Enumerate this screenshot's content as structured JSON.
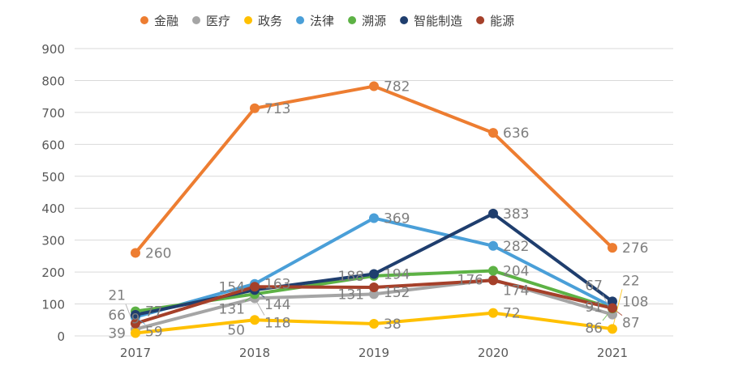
{
  "chart_data": {
    "type": "line",
    "categories": [
      "2017",
      "2018",
      "2019",
      "2020",
      "2021"
    ],
    "ylim": [
      0,
      900
    ],
    "yticks": [
      0,
      100,
      200,
      300,
      400,
      500,
      600,
      700,
      800,
      900
    ],
    "grid": true,
    "legend_position": "top",
    "series": [
      {
        "name": "金融",
        "color": "#ED7D31",
        "values": [
          260,
          713,
          782,
          636,
          276
        ]
      },
      {
        "name": "医疗",
        "color": "#A5A5A5",
        "values": [
          21,
          118,
          131,
          176,
          67
        ]
      },
      {
        "name": "政务",
        "color": "#FFC000",
        "values": [
          9,
          50,
          38,
          72,
          22
        ]
      },
      {
        "name": "法律",
        "color": "#4A9FD8",
        "values": [
          59,
          163,
          369,
          282,
          91
        ]
      },
      {
        "name": "溯源",
        "color": "#5DB245",
        "values": [
          77,
          131,
          188,
          204,
          86
        ]
      },
      {
        "name": "智能制造",
        "color": "#1F3E6E",
        "values": [
          66,
          144,
          194,
          383,
          108
        ]
      },
      {
        "name": "能源",
        "color": "#A5402A",
        "values": [
          39,
          154,
          152,
          174,
          87
        ]
      }
    ]
  }
}
